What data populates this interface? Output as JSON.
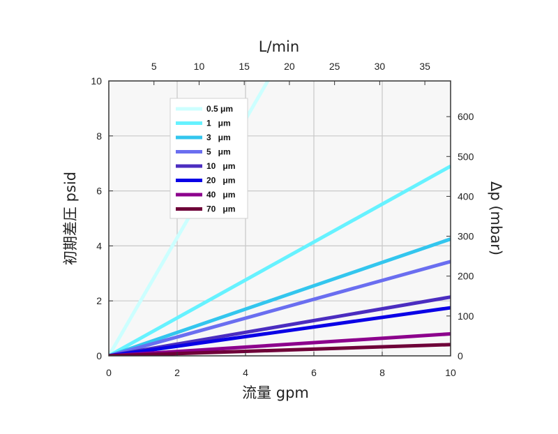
{
  "chart_data": {
    "type": "line",
    "xlabel": "流量 gpm",
    "ylabel": "初期差圧 psid",
    "x2label": "L/min",
    "y2label": "Δp (mbar)",
    "xlim": [
      0,
      10
    ],
    "ylim": [
      0,
      10
    ],
    "x2lim": [
      0,
      37.85
    ],
    "y2lim": [
      0,
      689.5
    ],
    "xticks": [
      0,
      2,
      4,
      6,
      8,
      10
    ],
    "yticks": [
      0,
      2,
      4,
      6,
      8,
      10
    ],
    "x2ticks": [
      5,
      10,
      15,
      20,
      25,
      30,
      35
    ],
    "y2ticks": [
      0,
      100,
      200,
      300,
      400,
      500,
      600
    ],
    "grid": true,
    "legend_position": "top-left",
    "x": [
      0,
      10
    ],
    "series": [
      {
        "name": "0.5 μm",
        "color": "#ccffff",
        "values": [
          0,
          21.5
        ]
      },
      {
        "name": "1   μm",
        "color": "#66f2ff",
        "values": [
          0,
          6.9
        ]
      },
      {
        "name": "3   μm",
        "color": "#33c6ee",
        "values": [
          0,
          4.25
        ]
      },
      {
        "name": "5   μm",
        "color": "#6a6ef0",
        "values": [
          0,
          3.43
        ]
      },
      {
        "name": "10   μm",
        "color": "#4b2dc0",
        "values": [
          0,
          2.14
        ]
      },
      {
        "name": "20   μm",
        "color": "#0a00e6",
        "values": [
          0,
          1.75
        ]
      },
      {
        "name": "40   μm",
        "color": "#8c008c",
        "values": [
          0,
          0.8
        ]
      },
      {
        "name": "70   μm",
        "color": "#6e0038",
        "values": [
          0,
          0.41
        ]
      }
    ]
  }
}
